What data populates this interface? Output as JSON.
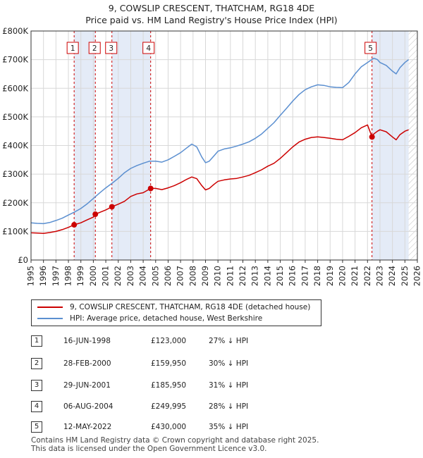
{
  "title_line1": "9, COWSLIP CRESCENT, THATCHAM, RG18 4DE",
  "title_line2": "Price paid vs. HM Land Registry's House Price Index (HPI)",
  "chart_data": {
    "type": "line",
    "xlim": [
      1995,
      2026
    ],
    "ylim": [
      0,
      800000
    ],
    "y_ticks": [
      {
        "value": 0,
        "label": "£0"
      },
      {
        "value": 100000,
        "label": "£100K"
      },
      {
        "value": 200000,
        "label": "£200K"
      },
      {
        "value": 300000,
        "label": "£300K"
      },
      {
        "value": 400000,
        "label": "£400K"
      },
      {
        "value": 500000,
        "label": "£500K"
      },
      {
        "value": 600000,
        "label": "£600K"
      },
      {
        "value": 700000,
        "label": "£700K"
      },
      {
        "value": 800000,
        "label": "£800K"
      }
    ],
    "x_ticks": [
      "1995",
      "1996",
      "1997",
      "1998",
      "1999",
      "2000",
      "2001",
      "2002",
      "2003",
      "2004",
      "2005",
      "2006",
      "2007",
      "2008",
      "2009",
      "2010",
      "2011",
      "2012",
      "2013",
      "2014",
      "2015",
      "2016",
      "2017",
      "2018",
      "2019",
      "2020",
      "2021",
      "2022",
      "2023",
      "2024",
      "2025",
      "2026"
    ],
    "grid": true,
    "series": [
      {
        "name": "9, COWSLIP CRESCENT, THATCHAM, RG18 4DE (detached house)",
        "color": "#cc0000",
        "points": [
          [
            1995.0,
            95000
          ],
          [
            1995.5,
            94000
          ],
          [
            1996.0,
            93000
          ],
          [
            1996.5,
            96000
          ],
          [
            1997.0,
            100000
          ],
          [
            1997.5,
            106000
          ],
          [
            1998.0,
            114000
          ],
          [
            1998.46,
            123000
          ],
          [
            1999.0,
            130000
          ],
          [
            1999.5,
            140000
          ],
          [
            2000.0,
            150000
          ],
          [
            2000.16,
            159950
          ],
          [
            2000.6,
            168000
          ],
          [
            2001.0,
            175000
          ],
          [
            2001.49,
            185950
          ],
          [
            2002.0,
            195000
          ],
          [
            2002.5,
            205000
          ],
          [
            2003.0,
            222000
          ],
          [
            2003.5,
            231000
          ],
          [
            2004.0,
            235000
          ],
          [
            2004.6,
            249995
          ],
          [
            2005.0,
            250000
          ],
          [
            2005.5,
            246000
          ],
          [
            2006.0,
            252000
          ],
          [
            2006.5,
            260000
          ],
          [
            2007.0,
            270000
          ],
          [
            2007.5,
            282000
          ],
          [
            2007.9,
            290000
          ],
          [
            2008.3,
            284000
          ],
          [
            2008.7,
            260000
          ],
          [
            2009.0,
            245000
          ],
          [
            2009.3,
            250000
          ],
          [
            2009.7,
            265000
          ],
          [
            2010.0,
            275000
          ],
          [
            2010.5,
            280000
          ],
          [
            2011.0,
            283000
          ],
          [
            2011.5,
            285000
          ],
          [
            2012.0,
            290000
          ],
          [
            2012.5,
            296000
          ],
          [
            2013.0,
            305000
          ],
          [
            2013.5,
            315000
          ],
          [
            2014.0,
            328000
          ],
          [
            2014.5,
            338000
          ],
          [
            2015.0,
            355000
          ],
          [
            2015.5,
            375000
          ],
          [
            2016.0,
            395000
          ],
          [
            2016.5,
            412000
          ],
          [
            2017.0,
            422000
          ],
          [
            2017.5,
            428000
          ],
          [
            2018.0,
            430000
          ],
          [
            2018.5,
            428000
          ],
          [
            2019.0,
            425000
          ],
          [
            2019.5,
            422000
          ],
          [
            2020.0,
            420000
          ],
          [
            2020.5,
            432000
          ],
          [
            2021.0,
            445000
          ],
          [
            2021.5,
            462000
          ],
          [
            2022.0,
            472000
          ],
          [
            2022.36,
            430000
          ],
          [
            2022.5,
            440000
          ],
          [
            2022.8,
            450000
          ],
          [
            2023.0,
            455000
          ],
          [
            2023.5,
            448000
          ],
          [
            2024.0,
            430000
          ],
          [
            2024.3,
            420000
          ],
          [
            2024.6,
            438000
          ],
          [
            2025.0,
            450000
          ],
          [
            2025.3,
            455000
          ]
        ]
      },
      {
        "name": "HPI: Average price, detached house, West Berkshire",
        "color": "#5b8fd0",
        "points": [
          [
            1995.0,
            130000
          ],
          [
            1995.5,
            128000
          ],
          [
            1996.0,
            127000
          ],
          [
            1996.5,
            131000
          ],
          [
            1997.0,
            138000
          ],
          [
            1997.5,
            146000
          ],
          [
            1998.0,
            157000
          ],
          [
            1998.5,
            168000
          ],
          [
            1999.0,
            180000
          ],
          [
            1999.5,
            196000
          ],
          [
            2000.0,
            215000
          ],
          [
            2000.5,
            234000
          ],
          [
            2001.0,
            252000
          ],
          [
            2001.5,
            268000
          ],
          [
            2002.0,
            285000
          ],
          [
            2002.5,
            305000
          ],
          [
            2003.0,
            320000
          ],
          [
            2003.5,
            330000
          ],
          [
            2004.0,
            338000
          ],
          [
            2004.5,
            345000
          ],
          [
            2005.0,
            345000
          ],
          [
            2005.5,
            342000
          ],
          [
            2006.0,
            350000
          ],
          [
            2006.5,
            362000
          ],
          [
            2007.0,
            375000
          ],
          [
            2007.5,
            392000
          ],
          [
            2007.9,
            405000
          ],
          [
            2008.3,
            395000
          ],
          [
            2008.7,
            360000
          ],
          [
            2009.0,
            340000
          ],
          [
            2009.3,
            345000
          ],
          [
            2009.7,
            365000
          ],
          [
            2010.0,
            380000
          ],
          [
            2010.5,
            388000
          ],
          [
            2011.0,
            392000
          ],
          [
            2011.5,
            398000
          ],
          [
            2012.0,
            405000
          ],
          [
            2012.5,
            413000
          ],
          [
            2013.0,
            425000
          ],
          [
            2013.5,
            440000
          ],
          [
            2014.0,
            460000
          ],
          [
            2014.5,
            480000
          ],
          [
            2015.0,
            505000
          ],
          [
            2015.5,
            530000
          ],
          [
            2016.0,
            555000
          ],
          [
            2016.5,
            578000
          ],
          [
            2017.0,
            595000
          ],
          [
            2017.5,
            605000
          ],
          [
            2018.0,
            612000
          ],
          [
            2018.5,
            610000
          ],
          [
            2019.0,
            605000
          ],
          [
            2019.5,
            603000
          ],
          [
            2020.0,
            602000
          ],
          [
            2020.5,
            620000
          ],
          [
            2021.0,
            650000
          ],
          [
            2021.5,
            675000
          ],
          [
            2022.0,
            690000
          ],
          [
            2022.5,
            705000
          ],
          [
            2022.8,
            700000
          ],
          [
            2023.0,
            690000
          ],
          [
            2023.5,
            680000
          ],
          [
            2024.0,
            660000
          ],
          [
            2024.3,
            650000
          ],
          [
            2024.6,
            672000
          ],
          [
            2025.0,
            690000
          ],
          [
            2025.3,
            700000
          ]
        ]
      }
    ],
    "sales": [
      {
        "label": "1",
        "year": 1998.46,
        "price": 123000
      },
      {
        "label": "2",
        "year": 2000.16,
        "price": 159950
      },
      {
        "label": "3",
        "year": 2001.49,
        "price": 185950
      },
      {
        "label": "4",
        "year": 2004.6,
        "price": 249995
      },
      {
        "label": "5",
        "year": 2022.36,
        "price": 430000
      }
    ],
    "shaded_spans": [
      [
        1998.46,
        2000.16
      ],
      [
        2001.49,
        2004.6
      ],
      [
        2022.36,
        2025.3
      ]
    ],
    "hatched_future_from": 2025.3
  },
  "legend": {
    "property": "9, COWSLIP CRESCENT, THATCHAM, RG18 4DE (detached house)",
    "hpi": "HPI: Average price, detached house, West Berkshire",
    "property_color": "#cc0000",
    "hpi_color": "#5b8fd0"
  },
  "transactions": [
    {
      "num": "1",
      "date": "16-JUN-1998",
      "price": "£123,000",
      "hpi": "27% ↓ HPI"
    },
    {
      "num": "2",
      "date": "28-FEB-2000",
      "price": "£159,950",
      "hpi": "30% ↓ HPI"
    },
    {
      "num": "3",
      "date": "29-JUN-2001",
      "price": "£185,950",
      "hpi": "31% ↓ HPI"
    },
    {
      "num": "4",
      "date": "06-AUG-2004",
      "price": "£249,995",
      "hpi": "28% ↓ HPI"
    },
    {
      "num": "5",
      "date": "12-MAY-2022",
      "price": "£430,000",
      "hpi": "35% ↓ HPI"
    }
  ],
  "footer": {
    "line1": "Contains HM Land Registry data © Crown copyright and database right 2025.",
    "line2": "This data is licensed under the Open Government Licence v3.0."
  }
}
